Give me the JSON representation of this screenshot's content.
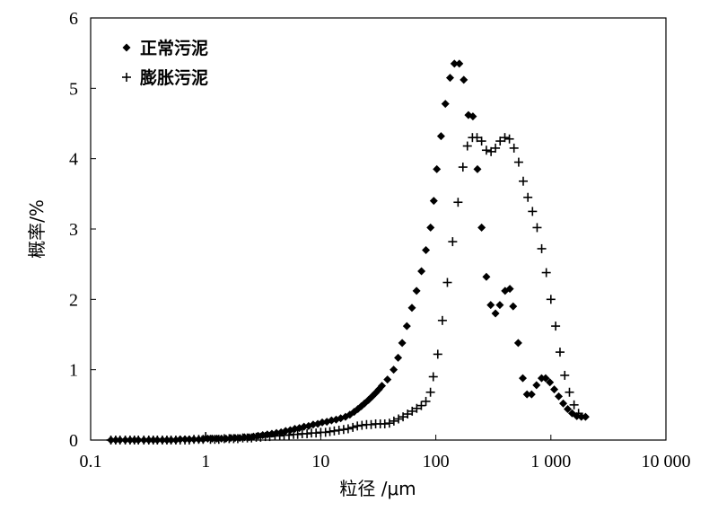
{
  "chart_data": {
    "type": "scatter",
    "xscale": "log",
    "xlim": [
      0.1,
      10000
    ],
    "ylim": [
      0,
      6
    ],
    "xlabel": "粒径 /μm",
    "ylabel": "概率/%",
    "grid": false,
    "legend_position": "top-left",
    "xticks": [
      {
        "value": 0.1,
        "label": "0.1"
      },
      {
        "value": 1,
        "label": "1"
      },
      {
        "value": 10,
        "label": "10"
      },
      {
        "value": 100,
        "label": "100"
      },
      {
        "value": 1000,
        "label": "1 000"
      },
      {
        "value": 10000,
        "label": "10 000"
      }
    ],
    "yticks": [
      {
        "value": 0,
        "label": "0"
      },
      {
        "value": 1,
        "label": "1"
      },
      {
        "value": 2,
        "label": "2"
      },
      {
        "value": 3,
        "label": "3"
      },
      {
        "value": 4,
        "label": "4"
      },
      {
        "value": 5,
        "label": "5"
      },
      {
        "value": 6,
        "label": "6"
      }
    ],
    "series": [
      {
        "name": "正常污泥",
        "marker": "diamond",
        "color": "#000000",
        "points": [
          [
            0.15,
            0
          ],
          [
            0.165,
            0
          ],
          [
            0.18,
            0
          ],
          [
            0.2,
            0
          ],
          [
            0.22,
            0
          ],
          [
            0.24,
            0
          ],
          [
            0.26,
            0
          ],
          [
            0.29,
            0
          ],
          [
            0.32,
            0
          ],
          [
            0.35,
            0
          ],
          [
            0.38,
            0
          ],
          [
            0.42,
            0
          ],
          [
            0.46,
            0
          ],
          [
            0.5,
            0
          ],
          [
            0.55,
            0
          ],
          [
            0.6,
            0.01
          ],
          [
            0.66,
            0.01
          ],
          [
            0.72,
            0.01
          ],
          [
            0.79,
            0.01
          ],
          [
            0.87,
            0.01
          ],
          [
            0.95,
            0.01
          ],
          [
            1.04,
            0.02
          ],
          [
            1.14,
            0.02
          ],
          [
            1.25,
            0.02
          ],
          [
            1.37,
            0.02
          ],
          [
            1.5,
            0.02
          ],
          [
            1.65,
            0.03
          ],
          [
            1.8,
            0.03
          ],
          [
            1.98,
            0.03
          ],
          [
            2.17,
            0.04
          ],
          [
            2.38,
            0.04
          ],
          [
            2.6,
            0.05
          ],
          [
            2.85,
            0.06
          ],
          [
            3.13,
            0.07
          ],
          [
            3.43,
            0.08
          ],
          [
            3.76,
            0.09
          ],
          [
            4.12,
            0.1
          ],
          [
            4.52,
            0.11
          ],
          [
            4.95,
            0.13
          ],
          [
            5.43,
            0.14
          ],
          [
            5.95,
            0.16
          ],
          [
            6.52,
            0.17
          ],
          [
            7.15,
            0.19
          ],
          [
            7.84,
            0.2
          ],
          [
            8.59,
            0.22
          ],
          [
            9.42,
            0.23
          ],
          [
            10.3,
            0.25
          ],
          [
            11.3,
            0.26
          ],
          [
            12.4,
            0.28
          ],
          [
            13.6,
            0.29
          ],
          [
            14.9,
            0.31
          ],
          [
            16.4,
            0.33
          ],
          [
            17.9,
            0.36
          ],
          [
            19.5,
            0.4
          ],
          [
            21,
            0.44
          ],
          [
            22.5,
            0.48
          ],
          [
            24,
            0.52
          ],
          [
            26,
            0.57
          ],
          [
            28,
            0.62
          ],
          [
            30,
            0.67
          ],
          [
            32,
            0.72
          ],
          [
            34,
            0.77
          ],
          [
            38,
            0.86
          ],
          [
            43,
            1
          ],
          [
            47,
            1.17
          ],
          [
            51,
            1.38
          ],
          [
            56,
            1.62
          ],
          [
            62,
            1.88
          ],
          [
            68,
            2.12
          ],
          [
            75,
            2.4
          ],
          [
            82,
            2.7
          ],
          [
            90,
            3.02
          ],
          [
            96,
            3.4
          ],
          [
            102,
            3.85
          ],
          [
            111,
            4.32
          ],
          [
            121,
            4.78
          ],
          [
            133,
            5.15
          ],
          [
            145,
            5.35
          ],
          [
            160,
            5.35
          ],
          [
            175,
            5.12
          ],
          [
            192,
            4.62
          ],
          [
            210,
            4.6
          ],
          [
            230,
            3.85
          ],
          [
            250,
            3.02
          ],
          [
            275,
            2.32
          ],
          [
            300,
            1.92
          ],
          [
            330,
            1.8
          ],
          [
            360,
            1.92
          ],
          [
            400,
            2.12
          ],
          [
            440,
            2.15
          ],
          [
            470,
            1.9
          ],
          [
            520,
            1.38
          ],
          [
            570,
            0.88
          ],
          [
            620,
            0.65
          ],
          [
            680,
            0.65
          ],
          [
            750,
            0.78
          ],
          [
            830,
            0.88
          ],
          [
            900,
            0.88
          ],
          [
            980,
            0.82
          ],
          [
            1070,
            0.72
          ],
          [
            1170,
            0.62
          ],
          [
            1280,
            0.52
          ],
          [
            1400,
            0.44
          ],
          [
            1530,
            0.38
          ],
          [
            1680,
            0.34
          ],
          [
            1840,
            0.33
          ],
          [
            2000,
            0.33
          ]
        ]
      },
      {
        "name": "膨胀污泥",
        "marker": "plus",
        "color": "#000000",
        "points": [
          [
            0.15,
            0
          ],
          [
            0.165,
            0
          ],
          [
            0.18,
            0
          ],
          [
            0.2,
            0
          ],
          [
            0.22,
            0
          ],
          [
            0.24,
            0
          ],
          [
            0.26,
            0
          ],
          [
            0.29,
            0
          ],
          [
            0.32,
            0
          ],
          [
            0.35,
            0
          ],
          [
            0.38,
            0
          ],
          [
            0.42,
            0
          ],
          [
            0.46,
            0
          ],
          [
            0.5,
            0
          ],
          [
            0.55,
            0
          ],
          [
            0.6,
            0
          ],
          [
            0.66,
            0
          ],
          [
            0.72,
            0
          ],
          [
            0.79,
            0.01
          ],
          [
            0.87,
            0.01
          ],
          [
            0.95,
            0.01
          ],
          [
            1,
            0.05
          ],
          [
            1.1,
            0.01
          ],
          [
            1.2,
            0.01
          ],
          [
            1.3,
            0.01
          ],
          [
            1.45,
            0.02
          ],
          [
            1.6,
            0.02
          ],
          [
            1.75,
            0.02
          ],
          [
            1.9,
            0.02
          ],
          [
            2.1,
            0.03
          ],
          [
            2.3,
            0.03
          ],
          [
            2.5,
            0.03
          ],
          [
            2.75,
            0.04
          ],
          [
            3,
            0.04
          ],
          [
            3.3,
            0.05
          ],
          [
            3.6,
            0.05
          ],
          [
            4,
            0.06
          ],
          [
            4.4,
            0.06
          ],
          [
            4.8,
            0.07
          ],
          [
            5.3,
            0.07
          ],
          [
            5.8,
            0.08
          ],
          [
            6.3,
            0.08
          ],
          [
            6.9,
            0.09
          ],
          [
            7.6,
            0.09
          ],
          [
            8.3,
            0.1
          ],
          [
            9.1,
            0.1
          ],
          [
            10,
            0.11
          ],
          [
            11,
            0.11
          ],
          [
            12,
            0.12
          ],
          [
            13.1,
            0.13
          ],
          [
            14.4,
            0.14
          ],
          [
            15.8,
            0.15
          ],
          [
            17.3,
            0.16
          ],
          [
            19,
            0.18
          ],
          [
            20.8,
            0.2
          ],
          [
            22.8,
            0.21
          ],
          [
            25,
            0.22
          ],
          [
            27.4,
            0.22
          ],
          [
            30,
            0.23
          ],
          [
            32.9,
            0.23
          ],
          [
            36,
            0.23
          ],
          [
            39.5,
            0.24
          ],
          [
            43.2,
            0.27
          ],
          [
            47.4,
            0.3
          ],
          [
            51.9,
            0.33
          ],
          [
            56.9,
            0.37
          ],
          [
            62.3,
            0.41
          ],
          [
            68.3,
            0.45
          ],
          [
            74.8,
            0.49
          ],
          [
            82,
            0.55
          ],
          [
            89.8,
            0.68
          ],
          [
            95,
            0.9
          ],
          [
            104,
            1.22
          ],
          [
            114,
            1.7
          ],
          [
            126,
            2.24
          ],
          [
            140,
            2.82
          ],
          [
            156,
            3.38
          ],
          [
            172,
            3.88
          ],
          [
            188,
            4.18
          ],
          [
            208,
            4.3
          ],
          [
            228,
            4.3
          ],
          [
            250,
            4.25
          ],
          [
            275,
            4.12
          ],
          [
            302,
            4.1
          ],
          [
            330,
            4.15
          ],
          [
            362,
            4.25
          ],
          [
            398,
            4.3
          ],
          [
            436,
            4.28
          ],
          [
            478,
            4.15
          ],
          [
            525,
            3.95
          ],
          [
            575,
            3.68
          ],
          [
            631,
            3.45
          ],
          [
            692,
            3.25
          ],
          [
            759,
            3.02
          ],
          [
            832,
            2.72
          ],
          [
            912,
            2.38
          ],
          [
            1000,
            2
          ],
          [
            1100,
            1.62
          ],
          [
            1200,
            1.25
          ],
          [
            1320,
            0.92
          ],
          [
            1450,
            0.68
          ],
          [
            1590,
            0.5
          ],
          [
            1740,
            0.38
          ]
        ]
      }
    ]
  }
}
